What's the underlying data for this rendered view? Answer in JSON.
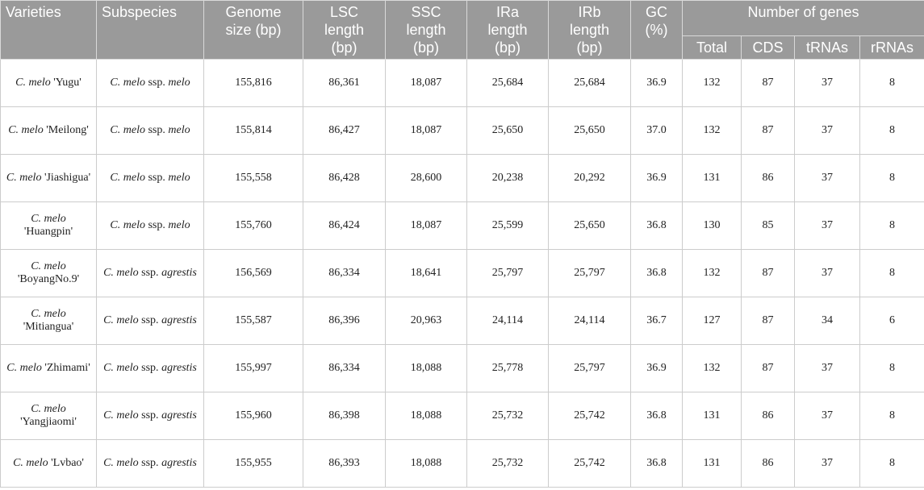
{
  "headers": {
    "varieties": "Varieties",
    "subspecies": "Subspecies",
    "genome_size": [
      "Genome",
      "size (bp)"
    ],
    "lsc": [
      "LSC",
      "length",
      "(bp)"
    ],
    "ssc": [
      "SSC",
      "length",
      "(bp)"
    ],
    "ira": [
      "IRa",
      "length",
      "(bp)"
    ],
    "irb": [
      "IRb",
      "length",
      "(bp)"
    ],
    "gc": [
      "GC",
      "(%)"
    ],
    "number_of_genes": "Number of genes",
    "total": "Total",
    "cds": "CDS",
    "trnas": "tRNAs",
    "rrnas": "rRNAs"
  },
  "rows": [
    {
      "var_sp": "C. melo",
      "var_name": "'Yugu'",
      "sub_a": "C. melo",
      "sub_b": "ssp.",
      "sub_c": "melo",
      "genome": "155,816",
      "lsc": "86,361",
      "ssc": "18,087",
      "ira": "25,684",
      "irb": "25,684",
      "gc": "36.9",
      "total": "132",
      "cds": "87",
      "trna": "37",
      "rrna": "8"
    },
    {
      "var_sp": "C. melo",
      "var_name": "'Meilong'",
      "sub_a": "C. melo",
      "sub_b": "ssp.",
      "sub_c": "melo",
      "genome": "155,814",
      "lsc": "86,427",
      "ssc": "18,087",
      "ira": "25,650",
      "irb": "25,650",
      "gc": "37.0",
      "total": "132",
      "cds": "87",
      "trna": "37",
      "rrna": "8"
    },
    {
      "var_sp": "C. melo",
      "var_name": "'Jiashigua'",
      "sub_a": "C. melo",
      "sub_b": "ssp.",
      "sub_c": "melo",
      "genome": "155,558",
      "lsc": "86,428",
      "ssc": "28,600",
      "ira": "20,238",
      "irb": "20,292",
      "gc": "36.9",
      "total": "131",
      "cds": "86",
      "trna": "37",
      "rrna": "8"
    },
    {
      "var_sp": "C. melo",
      "var_name": "'Huangpin'",
      "sub_a": "C. melo",
      "sub_b": "ssp.",
      "sub_c": "melo",
      "genome": "155,760",
      "lsc": "86,424",
      "ssc": "18,087",
      "ira": "25,599",
      "irb": "25,650",
      "gc": "36.8",
      "total": "130",
      "cds": "85",
      "trna": "37",
      "rrna": "8"
    },
    {
      "var_sp": "C. melo",
      "var_name": "'BoyangNo.9'",
      "sub_a": "C. melo",
      "sub_b": "ssp.",
      "sub_c": "agrestis",
      "genome": "156,569",
      "lsc": "86,334",
      "ssc": "18,641",
      "ira": "25,797",
      "irb": "25,797",
      "gc": "36.8",
      "total": "132",
      "cds": "87",
      "trna": "37",
      "rrna": "8"
    },
    {
      "var_sp": "C. melo",
      "var_name": "'Mitiangua'",
      "sub_a": "C. melo",
      "sub_b": "ssp.",
      "sub_c": "agrestis",
      "genome": "155,587",
      "lsc": "86,396",
      "ssc": "20,963",
      "ira": "24,114",
      "irb": "24,114",
      "gc": "36.7",
      "total": "127",
      "cds": "87",
      "trna": "34",
      "rrna": "6"
    },
    {
      "var_sp": "C. melo",
      "var_name": "'Zhimami'",
      "sub_a": "C. melo",
      "sub_b": "ssp.",
      "sub_c": "agrestis",
      "genome": "155,997",
      "lsc": "86,334",
      "ssc": "18,088",
      "ira": "25,778",
      "irb": "25,797",
      "gc": "36.9",
      "total": "132",
      "cds": "87",
      "trna": "37",
      "rrna": "8"
    },
    {
      "var_sp": "C. melo",
      "var_name": "'Yangjiaomi'",
      "sub_a": "C. melo",
      "sub_b": "ssp.",
      "sub_c": "agrestis",
      "genome": "155,960",
      "lsc": "86,398",
      "ssc": "18,088",
      "ira": "25,732",
      "irb": "25,742",
      "gc": "36.8",
      "total": "131",
      "cds": "86",
      "trna": "37",
      "rrna": "8"
    },
    {
      "var_sp": "C. melo",
      "var_name": "'Lvbao'",
      "sub_a": "C. melo",
      "sub_b": "ssp.",
      "sub_c": "agrestis",
      "genome": "155,955",
      "lsc": "86,393",
      "ssc": "18,088",
      "ira": "25,732",
      "irb": "25,742",
      "gc": "36.8",
      "total": "131",
      "cds": "86",
      "trna": "37",
      "rrna": "8"
    }
  ],
  "colors": {
    "header_bg": "#9a9a9a",
    "header_text": "#ffffff",
    "grid": "#cccccc"
  }
}
